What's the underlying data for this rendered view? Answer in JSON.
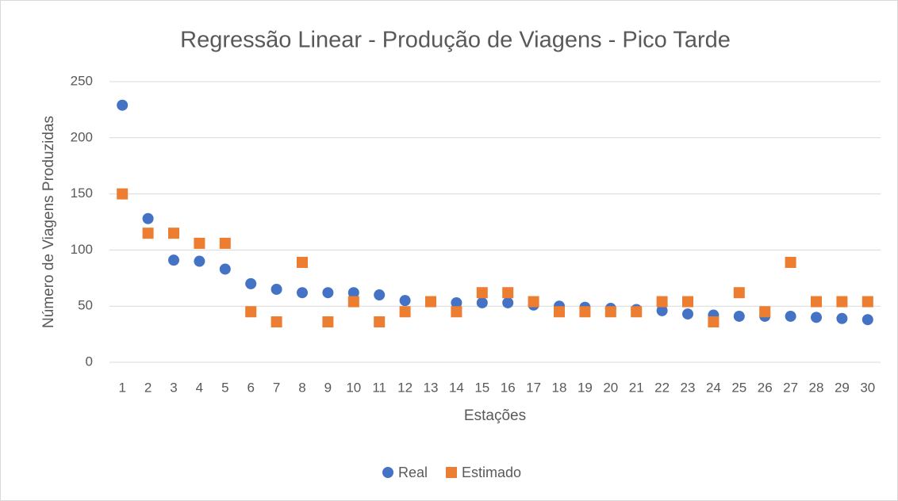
{
  "chart_data": {
    "type": "scatter",
    "title": "Regressão Linear - Produção de Viagens - Pico Tarde",
    "x_label": "Estações",
    "y_label": "Número de Viagens Produzidas",
    "categories": [
      "1",
      "2",
      "3",
      "4",
      "5",
      "6",
      "7",
      "8",
      "9",
      "10",
      "11",
      "12",
      "13",
      "14",
      "15",
      "16",
      "17",
      "18",
      "19",
      "20",
      "21",
      "22",
      "23",
      "24",
      "25",
      "26",
      "27",
      "28",
      "29",
      "30"
    ],
    "series": [
      {
        "name": "Real",
        "color": "#4472c4",
        "marker": "circle",
        "values": [
          229,
          128,
          91,
          90,
          83,
          70,
          65,
          62,
          62,
          62,
          60,
          55,
          54,
          53,
          53,
          53,
          51,
          50,
          49,
          48,
          47,
          46,
          43,
          42,
          41,
          41,
          41,
          40,
          39,
          38
        ]
      },
      {
        "name": "Estimado",
        "color": "#ed7d31",
        "marker": "square",
        "values": [
          150,
          115,
          115,
          106,
          106,
          45,
          36,
          89,
          36,
          54,
          36,
          45,
          54,
          45,
          62,
          62,
          54,
          45,
          45,
          45,
          45,
          54,
          54,
          36,
          62,
          45,
          89,
          54,
          54,
          54
        ]
      }
    ],
    "ylim": [
      0,
      250
    ],
    "yticks": [
      0,
      50,
      100,
      150,
      200,
      250
    ],
    "grid": true,
    "legend": "bottom"
  }
}
